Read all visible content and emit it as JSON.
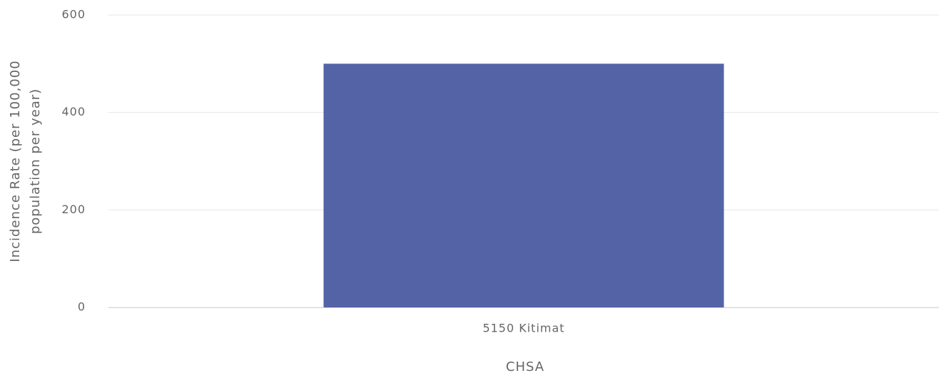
{
  "chart_data": {
    "type": "bar",
    "categories": [
      "5150 Kitimat"
    ],
    "values": [
      500
    ],
    "color": "#5463a6",
    "xlabel": "CHSA",
    "ylabel": [
      "Incidence Rate (per 100,000",
      "population per year)"
    ],
    "ylim": [
      0,
      600
    ],
    "yticks": [
      0,
      200,
      400,
      600
    ],
    "grid": true
  }
}
